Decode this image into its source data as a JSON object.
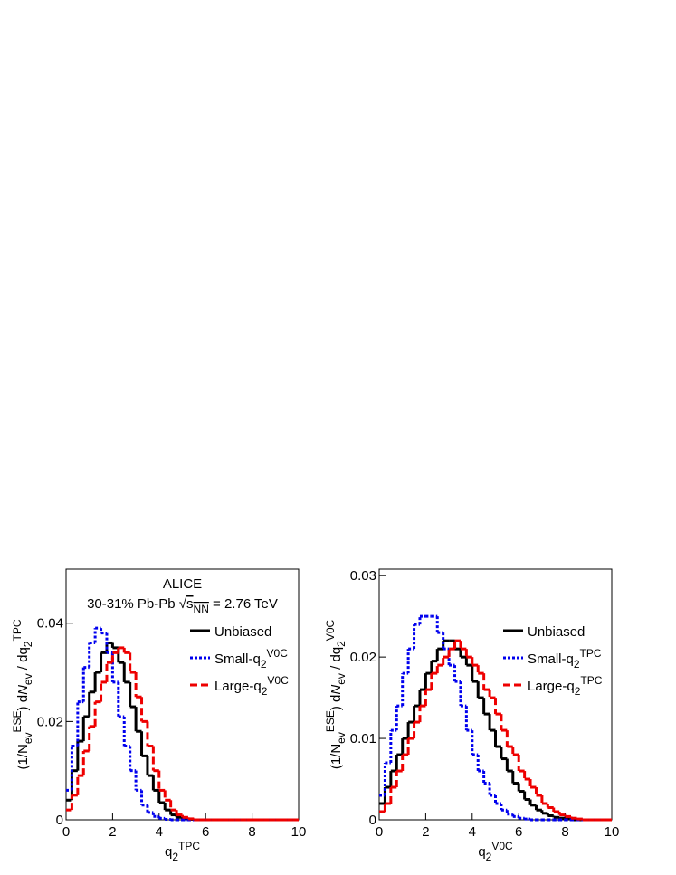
{
  "chart_data": [
    {
      "type": "histogram",
      "annotations": [
        [
          {
            "text": "ALICE"
          }
        ],
        [
          {
            "text": "30-31% Pb-Pb √"
          },
          {
            "text": "s",
            "overline": true
          },
          {
            "text": "NN",
            "sub": true,
            "overline": true
          },
          {
            "text": " = 2.76 TeV"
          }
        ]
      ],
      "xlabel": [
        {
          "text": "q"
        },
        {
          "text": "2",
          "sub": true
        },
        {
          "text": "TPC",
          "sup": true
        }
      ],
      "ylabel": [
        {
          "text": "(1/N"
        },
        {
          "text": "ev",
          "sub": true
        },
        {
          "text": "ESE",
          "sup": true
        },
        {
          "text": ") d"
        },
        {
          "text": "N",
          "italic": true
        },
        {
          "text": "ev",
          "sub": true
        },
        {
          "text": " / dq"
        },
        {
          "text": "2",
          "sub": true
        },
        {
          "text": "TPC",
          "sup": true
        }
      ],
      "xlim": [
        0,
        10
      ],
      "xticks": [
        0,
        2,
        4,
        6,
        8,
        10
      ],
      "ylim": [
        0,
        0.051
      ],
      "yticks": [
        0,
        0.02,
        0.04
      ],
      "bins": [
        0,
        0.25,
        0.5,
        0.75,
        1,
        1.25,
        1.5,
        1.75,
        2,
        2.25,
        2.5,
        2.75,
        3,
        3.25,
        3.5,
        3.75,
        4,
        4.25,
        4.5,
        4.75,
        5,
        5.25,
        5.5,
        5.75,
        6,
        6.25,
        6.5,
        6.75,
        7,
        7.25,
        7.5,
        7.75,
        8,
        8.25,
        8.5,
        8.75,
        9,
        9.25,
        9.5,
        9.75,
        10
      ],
      "series": [
        {
          "name": [
            {
              "text": "Unbiased"
            }
          ],
          "color": "#000000",
          "style": "solid",
          "values": [
            0.004,
            0.01,
            0.016,
            0.021,
            0.026,
            0.03,
            0.034,
            0.036,
            0.035,
            0.032,
            0.028,
            0.023,
            0.018,
            0.013,
            0.009,
            0.006,
            0.0035,
            0.002,
            0.001,
            0.0005,
            0.0002,
            0.0001,
            0,
            0,
            0,
            0,
            0,
            0,
            0,
            0,
            0,
            0,
            0,
            0,
            0,
            0,
            0,
            0,
            0,
            0
          ]
        },
        {
          "name": [
            {
              "text": "Small-q"
            },
            {
              "text": "2",
              "sub": true
            },
            {
              "text": "V0C",
              "sup": true
            }
          ],
          "color": "#0000ee",
          "style": "dotted",
          "values": [
            0.006,
            0.015,
            0.024,
            0.031,
            0.036,
            0.039,
            0.038,
            0.034,
            0.028,
            0.021,
            0.015,
            0.01,
            0.006,
            0.003,
            0.0015,
            0.0007,
            0.0003,
            0.0001,
            0,
            0,
            0,
            0,
            0,
            0,
            0,
            0,
            0,
            0,
            0,
            0,
            0,
            0,
            0,
            0,
            0,
            0,
            0,
            0,
            0,
            0
          ]
        },
        {
          "name": [
            {
              "text": "Large-q"
            },
            {
              "text": "2",
              "sub": true
            },
            {
              "text": "V0C",
              "sup": true
            }
          ],
          "color": "#ee0000",
          "style": "dashed",
          "values": [
            0.002,
            0.005,
            0.009,
            0.014,
            0.019,
            0.024,
            0.028,
            0.032,
            0.034,
            0.035,
            0.034,
            0.03,
            0.025,
            0.02,
            0.015,
            0.01,
            0.006,
            0.004,
            0.002,
            0.001,
            0.0005,
            0.0002,
            0,
            0,
            0,
            0,
            0,
            0,
            0,
            0,
            0,
            0,
            0,
            0,
            0,
            0,
            0,
            0,
            0,
            0
          ]
        }
      ]
    },
    {
      "type": "histogram",
      "xlabel": [
        {
          "text": "q"
        },
        {
          "text": "2",
          "sub": true
        },
        {
          "text": "V0C",
          "sup": true
        }
      ],
      "ylabel": [
        {
          "text": "(1/N"
        },
        {
          "text": "ev",
          "sub": true
        },
        {
          "text": "ESE",
          "sup": true
        },
        {
          "text": ") d"
        },
        {
          "text": "N",
          "italic": true
        },
        {
          "text": "ev",
          "sub": true
        },
        {
          "text": " / dq"
        },
        {
          "text": "2",
          "sub": true
        },
        {
          "text": "V0C",
          "sup": true
        }
      ],
      "xlim": [
        0,
        10
      ],
      "xticks": [
        0,
        2,
        4,
        6,
        8,
        10
      ],
      "ylim": [
        0,
        0.0308
      ],
      "yticks": [
        0,
        0.01,
        0.02,
        0.03
      ],
      "bins": [
        0,
        0.25,
        0.5,
        0.75,
        1,
        1.25,
        1.5,
        1.75,
        2,
        2.25,
        2.5,
        2.75,
        3,
        3.25,
        3.5,
        3.75,
        4,
        4.25,
        4.5,
        4.75,
        5,
        5.25,
        5.5,
        5.75,
        6,
        6.25,
        6.5,
        6.75,
        7,
        7.25,
        7.5,
        7.75,
        8,
        8.25,
        8.5,
        8.75,
        9,
        9.25,
        9.5,
        9.75,
        10
      ],
      "series": [
        {
          "name": [
            {
              "text": "Unbiased"
            }
          ],
          "color": "#000000",
          "style": "solid",
          "values": [
            0.002,
            0.004,
            0.006,
            0.008,
            0.01,
            0.012,
            0.014,
            0.016,
            0.018,
            0.0195,
            0.021,
            0.022,
            0.022,
            0.021,
            0.02,
            0.019,
            0.017,
            0.015,
            0.013,
            0.011,
            0.009,
            0.0075,
            0.006,
            0.0045,
            0.0035,
            0.0025,
            0.0018,
            0.0012,
            0.0008,
            0.0005,
            0.0003,
            0.0002,
            0.0001,
            0,
            0,
            0,
            0,
            0,
            0,
            0
          ]
        },
        {
          "name": [
            {
              "text": "Small-q"
            },
            {
              "text": "2",
              "sub": true
            },
            {
              "text": "TPC",
              "sup": true
            }
          ],
          "color": "#0000ee",
          "style": "dotted",
          "values": [
            0.003,
            0.007,
            0.011,
            0.014,
            0.018,
            0.021,
            0.024,
            0.025,
            0.025,
            0.025,
            0.023,
            0.021,
            0.019,
            0.017,
            0.014,
            0.011,
            0.008,
            0.006,
            0.0045,
            0.003,
            0.002,
            0.0012,
            0.0007,
            0.0004,
            0.0002,
            0.0001,
            0,
            0,
            0,
            0,
            0,
            0,
            0,
            0,
            0,
            0,
            0,
            0,
            0,
            0
          ]
        },
        {
          "name": [
            {
              "text": "Large-q"
            },
            {
              "text": "2",
              "sub": true
            },
            {
              "text": "TPC",
              "sup": true
            }
          ],
          "color": "#ee0000",
          "style": "dashed",
          "values": [
            0.001,
            0.002,
            0.004,
            0.006,
            0.008,
            0.01,
            0.012,
            0.014,
            0.016,
            0.018,
            0.019,
            0.02,
            0.021,
            0.022,
            0.021,
            0.02,
            0.019,
            0.018,
            0.016,
            0.015,
            0.013,
            0.011,
            0.009,
            0.008,
            0.006,
            0.005,
            0.004,
            0.003,
            0.002,
            0.0015,
            0.001,
            0.0006,
            0.0004,
            0.0002,
            0.0001,
            0,
            0,
            0,
            0,
            0
          ]
        }
      ]
    }
  ]
}
